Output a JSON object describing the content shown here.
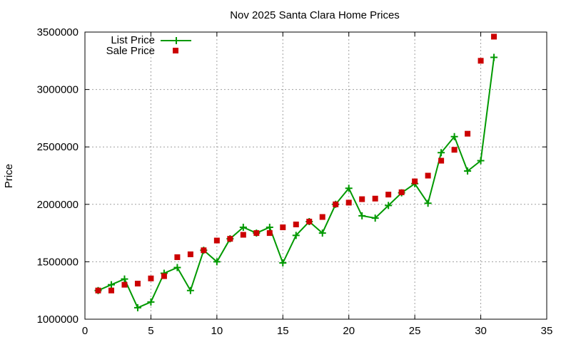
{
  "chart_data": {
    "type": "line",
    "title": "Nov 2025 Santa Clara Home Prices",
    "xlabel": "",
    "ylabel": "Price",
    "xlim": [
      0,
      35
    ],
    "ylim": [
      1000000,
      3500000
    ],
    "xticks": [
      0,
      5,
      10,
      15,
      20,
      25,
      30,
      35
    ],
    "yticks": [
      1000000,
      1500000,
      2000000,
      2500000,
      3000000,
      3500000
    ],
    "grid": true,
    "legend_position": "top-left",
    "series": [
      {
        "name": "List Price",
        "style": "line with plus markers",
        "color": "#009900",
        "x": [
          1,
          2,
          3,
          4,
          5,
          6,
          7,
          8,
          9,
          10,
          11,
          12,
          13,
          14,
          15,
          16,
          17,
          18,
          19,
          20,
          21,
          22,
          23,
          24,
          25,
          26,
          27,
          28,
          29,
          30,
          31
        ],
        "values": [
          1250000,
          1300000,
          1350000,
          1100000,
          1150000,
          1400000,
          1450000,
          1250000,
          1600000,
          1500000,
          1700000,
          1800000,
          1750000,
          1800000,
          1490000,
          1730000,
          1850000,
          1750000,
          2000000,
          2140000,
          1900000,
          1880000,
          1990000,
          2100000,
          2180000,
          2010000,
          2450000,
          2590000,
          2290000,
          2380000,
          3280000
        ]
      },
      {
        "name": "Sale Price",
        "style": "square markers",
        "color": "#cc0000",
        "x": [
          1,
          2,
          3,
          4,
          5,
          6,
          7,
          8,
          9,
          10,
          11,
          12,
          13,
          14,
          15,
          16,
          17,
          18,
          19,
          20,
          21,
          22,
          23,
          24,
          25,
          26,
          27,
          28,
          29,
          30,
          31
        ],
        "values": [
          1250000,
          1250000,
          1300000,
          1310000,
          1355000,
          1375000,
          1540000,
          1565000,
          1600000,
          1685000,
          1700000,
          1735000,
          1750000,
          1750000,
          1800000,
          1825000,
          1850000,
          1890000,
          2000000,
          2015000,
          2045000,
          2050000,
          2085000,
          2105000,
          2200000,
          2250000,
          2380000,
          2475000,
          2615000,
          3250000,
          3460000
        ]
      }
    ]
  }
}
